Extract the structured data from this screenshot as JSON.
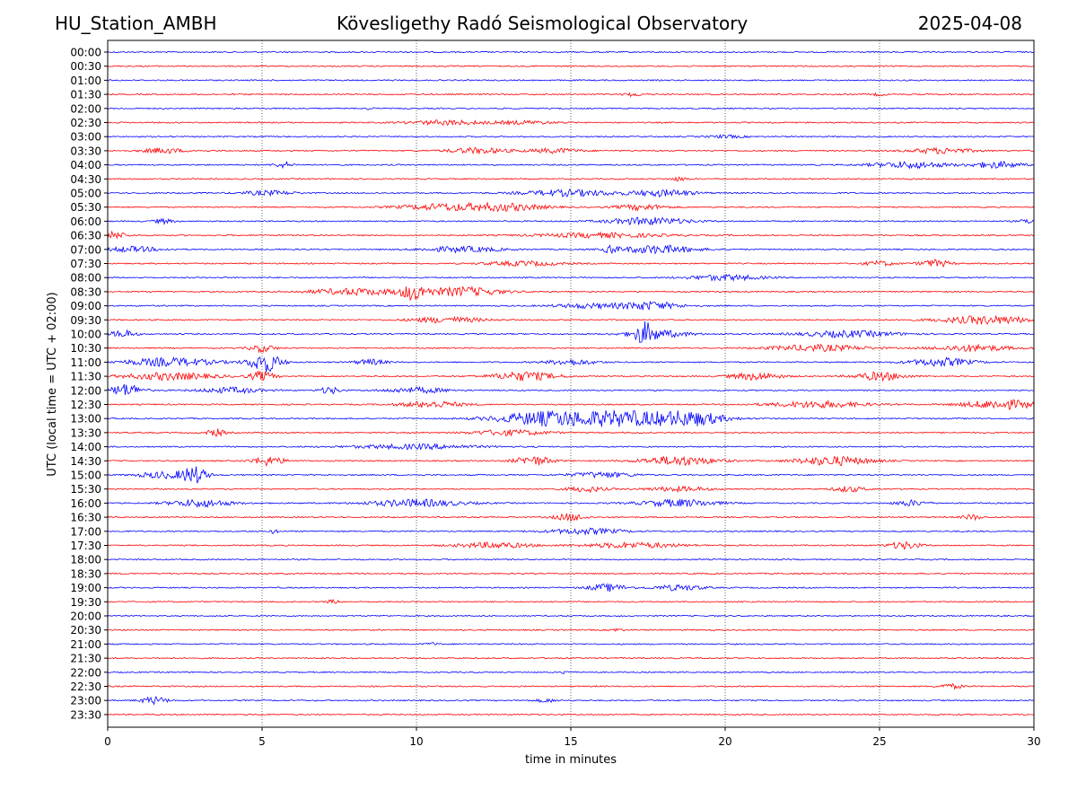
{
  "header": {
    "station": "HU_Station_AMBH",
    "title": "Kövesligethy Radó Seismological Observatory",
    "date": "2025-04-08"
  },
  "colors": {
    "trace_a": "#0000ff",
    "trace_b": "#ff0000",
    "axis": "#000000",
    "grid": "#000000"
  },
  "chart_data": {
    "type": "line",
    "subtype": "helicorder",
    "xlabel": "time in minutes",
    "ylabel": "UTC (local time = UTC + 02:00)",
    "xlim": [
      0,
      30
    ],
    "xticks": [
      0,
      5,
      10,
      15,
      20,
      25,
      30
    ],
    "grid": "vertical dotted at x ticks",
    "row_colors": [
      "#0000ff",
      "#ff0000"
    ],
    "rows": [
      {
        "label": "00:00",
        "bursts": []
      },
      {
        "label": "00:30",
        "bursts": []
      },
      {
        "label": "01:00",
        "bursts": []
      },
      {
        "label": "01:30",
        "bursts": [
          [
            17.0,
            0.3,
            2
          ],
          [
            25.0,
            0.2,
            1.5
          ]
        ]
      },
      {
        "label": "02:00",
        "bursts": [
          [
            8.5,
            0.1,
            1.5
          ]
        ]
      },
      {
        "label": "02:30",
        "bursts": [
          [
            11.0,
            1.2,
            2.5
          ],
          [
            13.5,
            1.0,
            1.8
          ]
        ]
      },
      {
        "label": "03:00",
        "bursts": [
          [
            20.0,
            0.6,
            1.5
          ]
        ]
      },
      {
        "label": "03:30",
        "bursts": [
          [
            1.8,
            0.6,
            3
          ],
          [
            12.0,
            1.0,
            3
          ],
          [
            14.5,
            0.8,
            2.5
          ],
          [
            27.0,
            1.0,
            3
          ]
        ]
      },
      {
        "label": "04:00",
        "bursts": [
          [
            5.7,
            0.3,
            3
          ],
          [
            26.0,
            1.2,
            3.5
          ],
          [
            28.8,
            0.8,
            3.5
          ]
        ]
      },
      {
        "label": "04:30",
        "bursts": [
          [
            18.5,
            0.3,
            2
          ]
        ]
      },
      {
        "label": "05:00",
        "bursts": [
          [
            5.2,
            0.8,
            2.5
          ],
          [
            15.0,
            1.5,
            3.5
          ],
          [
            18.0,
            1.0,
            3.5
          ]
        ]
      },
      {
        "label": "05:30",
        "bursts": [
          [
            11.0,
            1.5,
            3.5
          ],
          [
            13.0,
            1.2,
            3.5
          ],
          [
            17.3,
            0.8,
            3
          ]
        ]
      },
      {
        "label": "06:00",
        "bursts": [
          [
            1.8,
            0.3,
            2.5
          ],
          [
            17.5,
            1.3,
            4
          ],
          [
            30.0,
            0.4,
            3
          ]
        ]
      },
      {
        "label": "06:30",
        "bursts": [
          [
            0.2,
            0.4,
            4
          ],
          [
            16.0,
            2.0,
            2.5
          ]
        ]
      },
      {
        "label": "07:00",
        "bursts": [
          [
            0.8,
            0.8,
            3
          ],
          [
            11.5,
            1.2,
            3
          ],
          [
            17.8,
            1.2,
            4.5
          ],
          [
            16.3,
            0.2,
            4
          ]
        ]
      },
      {
        "label": "07:30",
        "bursts": [
          [
            13.5,
            1.2,
            2.5
          ],
          [
            25.0,
            0.5,
            2.5
          ],
          [
            26.8,
            0.5,
            4
          ]
        ]
      },
      {
        "label": "08:00",
        "bursts": [
          [
            20.0,
            1.2,
            3
          ]
        ]
      },
      {
        "label": "08:30",
        "bursts": [
          [
            8.0,
            1.5,
            3.5
          ],
          [
            9.9,
            0.4,
            8
          ],
          [
            11.5,
            1.2,
            5
          ]
        ]
      },
      {
        "label": "09:00",
        "bursts": [
          [
            15.5,
            1.0,
            2.5
          ],
          [
            17.5,
            1.0,
            4.5
          ]
        ]
      },
      {
        "label": "09:30",
        "bursts": [
          [
            11.0,
            1.2,
            3
          ],
          [
            28.5,
            1.5,
            4.5
          ]
        ]
      },
      {
        "label": "10:00",
        "bursts": [
          [
            0.5,
            0.4,
            4
          ],
          [
            17.4,
            0.3,
            10
          ],
          [
            17.8,
            1.0,
            4
          ],
          [
            24.0,
            1.5,
            3.5
          ]
        ]
      },
      {
        "label": "10:30",
        "bursts": [
          [
            5.0,
            0.4,
            4
          ],
          [
            23.0,
            1.5,
            3.5
          ],
          [
            28.0,
            1.2,
            3.5
          ]
        ]
      },
      {
        "label": "11:00",
        "bursts": [
          [
            2.0,
            1.5,
            4.5
          ],
          [
            5.1,
            0.5,
            11
          ],
          [
            8.5,
            0.5,
            3
          ],
          [
            15.0,
            0.8,
            3
          ],
          [
            27.0,
            1.0,
            4.5
          ]
        ]
      },
      {
        "label": "11:30",
        "bursts": [
          [
            2.0,
            1.5,
            4
          ],
          [
            5.0,
            0.4,
            5
          ],
          [
            13.5,
            1.0,
            5
          ],
          [
            21.0,
            0.8,
            4
          ],
          [
            25.0,
            0.8,
            4.5
          ]
        ]
      },
      {
        "label": "12:00",
        "bursts": [
          [
            0.6,
            0.5,
            7
          ],
          [
            4.0,
            1.0,
            3
          ],
          [
            7.2,
            0.3,
            4
          ],
          [
            10.0,
            1.0,
            3
          ]
        ]
      },
      {
        "label": "12:30",
        "bursts": [
          [
            10.5,
            1.0,
            3.5
          ],
          [
            23.0,
            1.5,
            3.5
          ],
          [
            29.0,
            1.2,
            5
          ]
        ]
      },
      {
        "label": "13:00",
        "bursts": [
          [
            14.0,
            1.5,
            6.5
          ],
          [
            16.7,
            2.0,
            8.5
          ],
          [
            19.0,
            1.0,
            6
          ]
        ]
      },
      {
        "label": "13:30",
        "bursts": [
          [
            3.5,
            0.3,
            4
          ],
          [
            13.0,
            1.2,
            3
          ]
        ]
      },
      {
        "label": "14:00",
        "bursts": [
          [
            10.0,
            2.0,
            2.5
          ]
        ]
      },
      {
        "label": "14:30",
        "bursts": [
          [
            5.2,
            0.5,
            5
          ],
          [
            13.8,
            0.6,
            5
          ],
          [
            18.5,
            1.2,
            5
          ],
          [
            23.5,
            1.2,
            5
          ]
        ]
      },
      {
        "label": "15:00",
        "bursts": [
          [
            1.8,
            0.8,
            3.5
          ],
          [
            2.8,
            0.4,
            9
          ],
          [
            16.0,
            1.0,
            3
          ]
        ]
      },
      {
        "label": "15:30",
        "bursts": [
          [
            15.5,
            0.6,
            3
          ],
          [
            18.5,
            1.0,
            2.5
          ],
          [
            24.0,
            0.5,
            3
          ]
        ]
      },
      {
        "label": "16:00",
        "bursts": [
          [
            3.0,
            1.0,
            4
          ],
          [
            10.0,
            1.5,
            4
          ],
          [
            18.5,
            1.2,
            4
          ],
          [
            26.0,
            0.5,
            3
          ]
        ]
      },
      {
        "label": "16:30",
        "bursts": [
          [
            15.0,
            0.5,
            4
          ],
          [
            28.0,
            0.3,
            3
          ]
        ]
      },
      {
        "label": "17:00",
        "bursts": [
          [
            5.4,
            0.1,
            3
          ],
          [
            15.5,
            1.2,
            3
          ]
        ]
      },
      {
        "label": "17:30",
        "bursts": [
          [
            12.5,
            1.2,
            3
          ],
          [
            17.0,
            1.5,
            3
          ],
          [
            25.8,
            0.5,
            4
          ]
        ]
      },
      {
        "label": "18:00",
        "bursts": []
      },
      {
        "label": "18:30",
        "bursts": []
      },
      {
        "label": "19:00",
        "bursts": [
          [
            16.2,
            0.6,
            4
          ],
          [
            18.5,
            0.8,
            3
          ]
        ]
      },
      {
        "label": "19:30",
        "bursts": [
          [
            7.3,
            0.2,
            2
          ]
        ]
      },
      {
        "label": "20:00",
        "bursts": []
      },
      {
        "label": "20:30",
        "bursts": [
          [
            16.5,
            0.2,
            1.5
          ]
        ]
      },
      {
        "label": "21:00",
        "bursts": [
          [
            10.5,
            0.2,
            1.5
          ]
        ]
      },
      {
        "label": "21:30",
        "bursts": []
      },
      {
        "label": "22:00",
        "bursts": [
          [
            14.8,
            0.1,
            2
          ]
        ]
      },
      {
        "label": "22:30",
        "bursts": [
          [
            27.3,
            0.4,
            2.5
          ]
        ]
      },
      {
        "label": "23:00",
        "bursts": [
          [
            1.5,
            0.4,
            4
          ],
          [
            14.2,
            0.3,
            2
          ]
        ]
      },
      {
        "label": "23:30",
        "bursts": []
      }
    ]
  }
}
